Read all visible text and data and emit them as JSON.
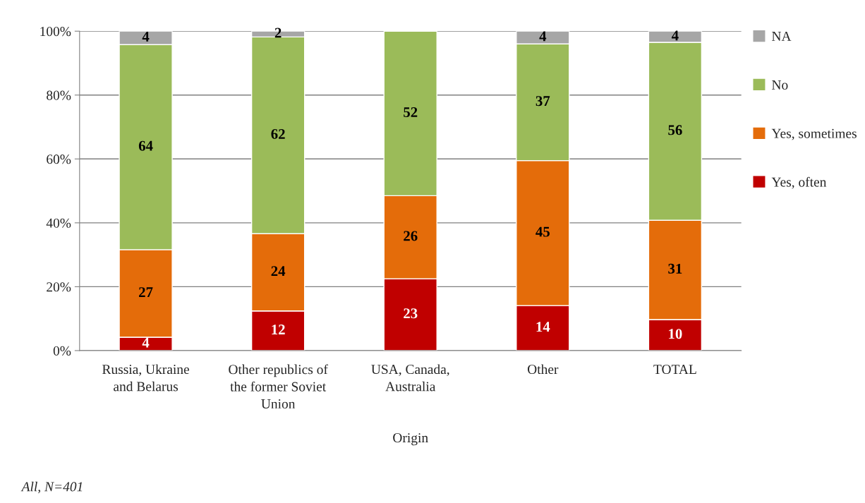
{
  "chart_data": {
    "type": "bar",
    "stacked": true,
    "categories": [
      "Russia, Ukraine\nand Belarus",
      "Other republics of\nthe former Soviet\nUnion",
      "USA, Canada,\nAustralia",
      "Other",
      "TOTAL"
    ],
    "xlabel": "Origin",
    "series": [
      {
        "name": "Yes, often",
        "color": "#c00000",
        "values": [
          4.2,
          12.4,
          22.5,
          14.1,
          9.7
        ],
        "value_labels": [
          "4",
          "12",
          "23",
          "14",
          "10"
        ]
      },
      {
        "name": "Yes, sometimes",
        "color": "#e46c0a",
        "values": [
          27.4,
          24.2,
          26.0,
          45.4,
          31.1
        ],
        "value_labels": [
          "27",
          "24",
          "26",
          "45",
          "31"
        ]
      },
      {
        "name": "No",
        "color": "#9bbb59",
        "values": [
          64.2,
          61.6,
          51.5,
          36.5,
          55.7
        ],
        "value_labels": [
          "64",
          "62",
          "52",
          "37",
          "56"
        ]
      },
      {
        "name": "NA",
        "color": "#a6a6a6",
        "values": [
          4.2,
          1.8,
          null,
          4.0,
          3.5
        ],
        "value_labels": [
          "4",
          "2",
          null,
          "4",
          "4"
        ]
      }
    ],
    "ylim": [
      0,
      100
    ],
    "yticks": [
      {
        "value": 0,
        "label": "0%"
      },
      {
        "value": 20,
        "label": "20%"
      },
      {
        "value": 40,
        "label": "40%"
      },
      {
        "value": 60,
        "label": "60%"
      },
      {
        "value": 80,
        "label": "80%"
      },
      {
        "value": 100,
        "label": "100%"
      }
    ],
    "grid": "y",
    "legend": "right",
    "annotations": [
      "All, N=401"
    ]
  }
}
